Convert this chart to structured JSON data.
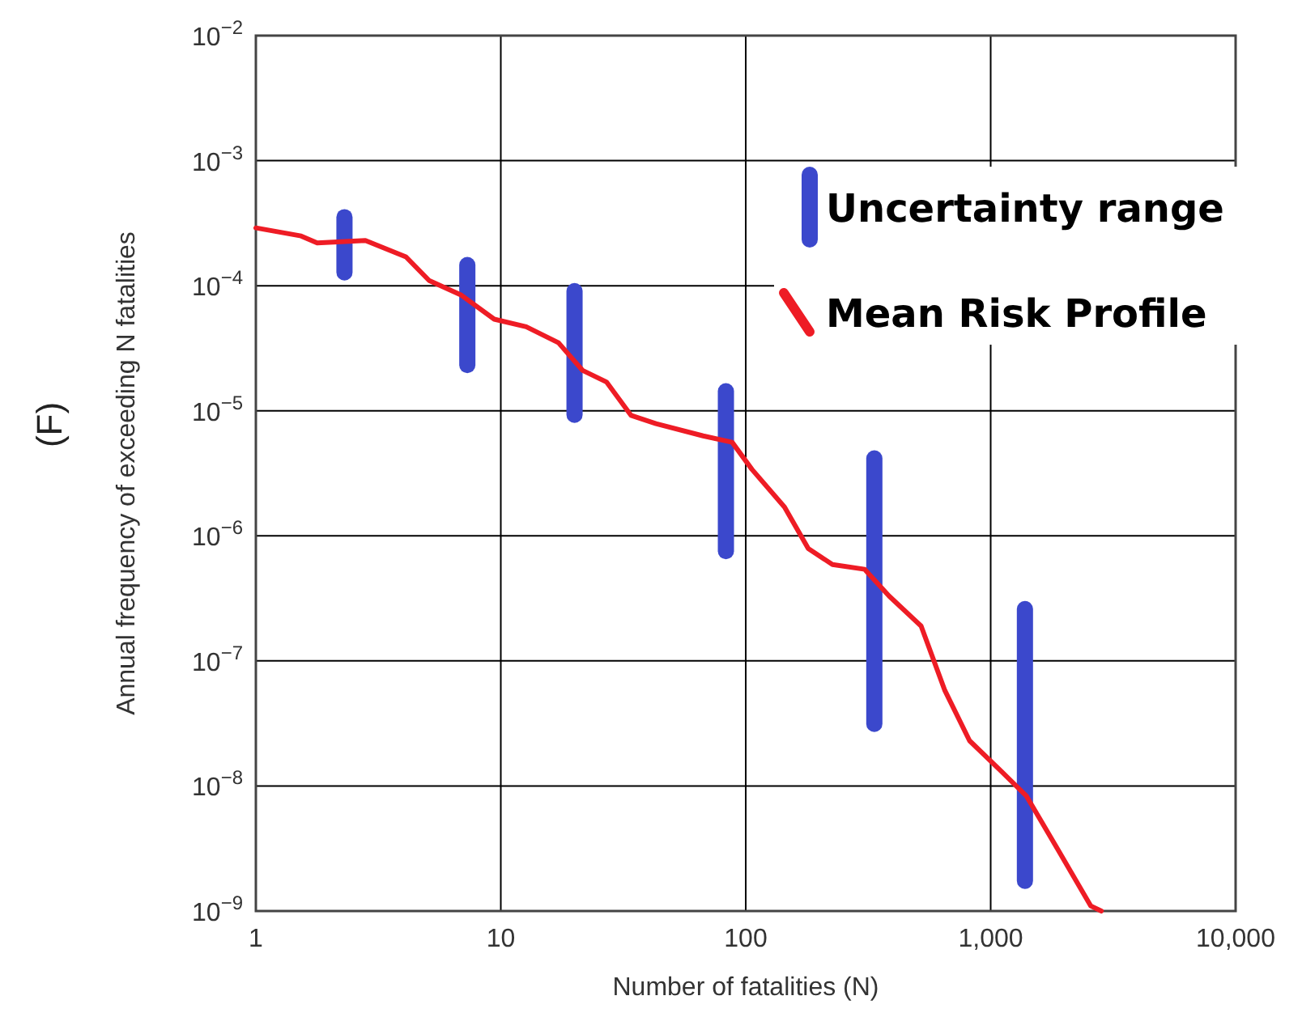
{
  "chart_data": {
    "type": "line",
    "xlabel": "Number of fatalities (N)",
    "ylabel": "Annual frequency of exceeding N fatalities",
    "annotations": [
      "(F)"
    ],
    "log": "xy",
    "grid": true,
    "legend": "top right",
    "xlim": [
      1,
      10000
    ],
    "xticks": [
      1,
      10,
      100,
      {
        "value": 1000,
        "label": "1,000"
      },
      {
        "value": 10000,
        "label": "10,000"
      }
    ],
    "ylim": [
      1e-09,
      0.01
    ],
    "yticks": [
      {
        "value": 1e-09,
        "label": "10$^{−9}$"
      },
      {
        "value": 1e-08,
        "label": "10$^{−8}$"
      },
      {
        "value": 1e-07,
        "label": "10$^{−7}$"
      },
      {
        "value": 1e-06,
        "label": "10$^{−6}$"
      },
      {
        "value": 1e-05,
        "label": "10$^{−5}$"
      },
      {
        "value": 0.0001,
        "label": "10$^{−4}$"
      },
      {
        "value": 0.001,
        "label": "10$^{−3}$"
      },
      {
        "value": 0.01,
        "label": "10$^{−2}$"
      }
    ],
    "series": [
      {
        "name": "Uncertainty range",
        "type": "bar",
        "color": "#3b48cc",
        "x": [
          2.3,
          7.3,
          20,
          83,
          335,
          1380
        ],
        "base": [
          0.00011,
          2e-05,
          8e-06,
          6.5e-07,
          2.7e-08,
          1.5e-09
        ],
        "values": [
          0.0003,
          0.00015,
          9.7e-05,
          1.6e-05,
          4.8e-06,
          3e-07
        ]
      },
      {
        "name": "Mean Risk Profile",
        "color": "#ee1c25",
        "marker": "none",
        "line_style": "solid",
        "x": [
          1,
          1.53,
          1.78,
          2.8,
          4.1,
          5.1,
          6.9,
          9.4,
          12.7,
          17.2,
          21.6,
          27,
          34,
          43,
          67,
          88,
          106,
          144,
          180,
          226,
          306,
          385,
          520,
          650,
          820,
          1110,
          1400,
          1900,
          2560,
          2830
        ],
        "values": [
          0.00029,
          0.00025,
          0.00022,
          0.00023,
          0.00017,
          0.00011,
          8.4e-05,
          5.4e-05,
          4.7e-05,
          3.5e-05,
          2.1e-05,
          1.7e-05,
          9.2e-06,
          7.9e-06,
          6.3e-06,
          5.6e-06,
          3.4e-06,
          1.7e-06,
          7.9e-07,
          5.9e-07,
          5.4e-07,
          3.3e-07,
          1.9e-07,
          5.8e-08,
          2.3e-08,
          1.3e-08,
          8.3e-09,
          3e-09,
          1.1e-09,
          1e-09
        ]
      }
    ]
  }
}
